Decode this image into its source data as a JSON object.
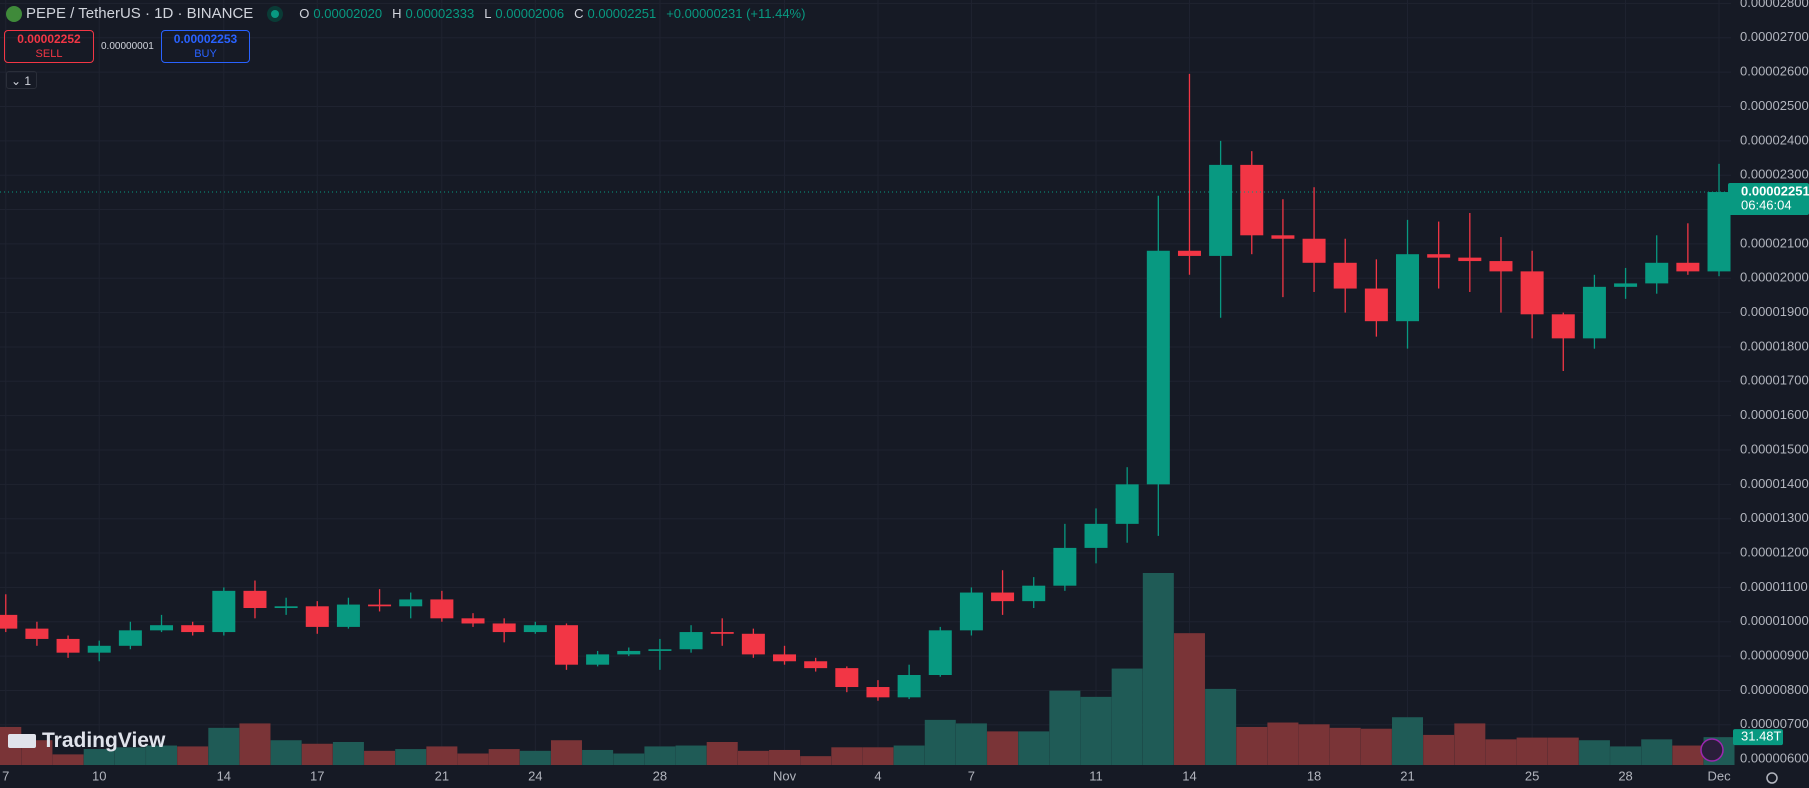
{
  "header": {
    "symbol": "PEPE / TetherUS · 1D · BINANCE",
    "o": "O",
    "open": "0.00002020",
    "h": "H",
    "high": "0.00002333",
    "l": "L",
    "low": "0.00002006",
    "c": "C",
    "close": "0.00002251",
    "change": "+0.00000231 (+11.44%)"
  },
  "trade": {
    "sell_price": "0.00002252",
    "sell": "SELL",
    "spread": "0.00000001",
    "buy_price": "0.00002253",
    "buy": "BUY"
  },
  "indicators": "1",
  "logo": "TradingView",
  "chart_data": {
    "type": "candlestick",
    "categories": [
      "7",
      null,
      null,
      "10",
      null,
      null,
      null,
      "14",
      null,
      null,
      "17",
      null,
      null,
      null,
      "21",
      null,
      null,
      "24",
      null,
      null,
      null,
      "28",
      null,
      null,
      null,
      "Nov",
      null,
      null,
      "4",
      null,
      null,
      "7",
      null,
      null,
      null,
      "11",
      null,
      null,
      "14",
      null,
      null,
      null,
      "18",
      null,
      null,
      "21",
      null,
      null,
      null,
      "25",
      null,
      null,
      "28",
      null,
      null,
      "Dec"
    ],
    "open": [
      1.02e-05,
      9.8e-06,
      9.5e-06,
      9.1e-06,
      9.3e-06,
      9.75e-06,
      9.9e-06,
      9.7e-06,
      1.09e-05,
      1.04e-05,
      1.045e-05,
      9.85e-06,
      1.05e-05,
      1.045e-05,
      1.065e-05,
      1.01e-05,
      9.95e-06,
      9.7e-06,
      9.9e-06,
      8.75e-06,
      9.05e-06,
      9.15e-06,
      9.2e-06,
      9.7e-06,
      9.65e-06,
      9.05e-06,
      8.85e-06,
      8.65e-06,
      8.1e-06,
      7.8e-06,
      8.45e-06,
      9.75e-06,
      1.085e-05,
      1.06e-05,
      1.105e-05,
      1.215e-05,
      1.285e-05,
      1.4e-05,
      2.08e-05,
      2.065e-05,
      2.33e-05,
      2.125e-05,
      2.115e-05,
      2.045e-05,
      1.97e-05,
      1.875e-05,
      2.07e-05,
      2.06e-05,
      2.05e-05,
      2.02e-05,
      1.895e-05,
      1.825e-05,
      1.975e-05,
      1.985e-05,
      2.045e-05,
      2.02e-05
    ],
    "high": [
      1.08e-05,
      1e-05,
      9.6e-06,
      9.45e-06,
      1e-05,
      1.02e-05,
      1e-05,
      1.1e-05,
      1.12e-05,
      1.07e-05,
      1.06e-05,
      1.07e-05,
      1.095e-05,
      1.085e-05,
      1.09e-05,
      1.025e-05,
      1.01e-05,
      1e-05,
      9.95e-06,
      9.15e-06,
      9.25e-06,
      9.5e-06,
      9.9e-06,
      1.01e-05,
      9.8e-06,
      9.3e-06,
      8.95e-06,
      8.7e-06,
      8.3e-06,
      8.75e-06,
      9.85e-06,
      1.1e-05,
      1.15e-05,
      1.13e-05,
      1.285e-05,
      1.33e-05,
      1.45e-05,
      2.24e-05,
      2.595e-05,
      2.4e-05,
      2.37e-05,
      2.23e-05,
      2.265e-05,
      2.115e-05,
      2.055e-05,
      2.17e-05,
      2.165e-05,
      2.19e-05,
      2.12e-05,
      2.08e-05,
      1.9e-05,
      2.01e-05,
      2.03e-05,
      2.125e-05,
      2.16e-05,
      2.333e-05
    ],
    "low": [
      9.7e-06,
      9.3e-06,
      8.95e-06,
      8.85e-06,
      9.2e-06,
      9.7e-06,
      9.6e-06,
      9.6e-06,
      1.01e-05,
      1.02e-05,
      9.65e-06,
      9.8e-06,
      1.03e-05,
      1.01e-05,
      1e-05,
      9.85e-06,
      9.4e-06,
      9.65e-06,
      8.6e-06,
      8.7e-06,
      9e-06,
      8.6e-06,
      9.1e-06,
      9.3e-06,
      8.95e-06,
      8.75e-06,
      8.55e-06,
      7.95e-06,
      7.7e-06,
      7.75e-06,
      8.4e-06,
      9.6e-06,
      1.02e-05,
      1.04e-05,
      1.09e-05,
      1.17e-05,
      1.23e-05,
      1.25e-05,
      2.01e-05,
      1.885e-05,
      2.07e-05,
      1.945e-05,
      1.96e-05,
      1.9e-05,
      1.83e-05,
      1.795e-05,
      1.97e-05,
      1.96e-05,
      1.9e-05,
      1.825e-05,
      1.73e-05,
      1.795e-05,
      1.94e-05,
      1.955e-05,
      2.01e-05,
      2.006e-05
    ],
    "close": [
      9.8e-06,
      9.5e-06,
      9.1e-06,
      9.3e-06,
      9.75e-06,
      9.9e-06,
      9.7e-06,
      1.09e-05,
      1.04e-05,
      1.045e-05,
      9.85e-06,
      1.05e-05,
      1.045e-05,
      1.065e-05,
      1.01e-05,
      9.95e-06,
      9.7e-06,
      9.9e-06,
      8.75e-06,
      9.05e-06,
      9.15e-06,
      9.2e-06,
      9.7e-06,
      9.65e-06,
      9.05e-06,
      8.85e-06,
      8.65e-06,
      8.1e-06,
      7.8e-06,
      8.45e-06,
      9.75e-06,
      1.085e-05,
      1.06e-05,
      1.105e-05,
      1.215e-05,
      1.285e-05,
      1.4e-05,
      2.08e-05,
      2.065e-05,
      2.33e-05,
      2.125e-05,
      2.115e-05,
      2.045e-05,
      1.97e-05,
      1.875e-05,
      2.07e-05,
      2.06e-05,
      2.05e-05,
      2.02e-05,
      1.895e-05,
      1.825e-05,
      1.975e-05,
      1.985e-05,
      2.045e-05,
      2.02e-05,
      2.251e-05
    ],
    "volume": [
      43,
      28,
      12,
      18,
      20,
      22,
      21,
      42,
      47,
      28,
      24,
      26,
      16,
      18,
      21,
      13,
      18,
      16,
      28,
      17,
      13,
      21,
      22,
      26,
      16,
      17,
      10,
      20,
      20,
      22,
      51,
      47,
      38,
      38,
      84,
      77,
      109,
      217,
      149,
      86,
      43,
      48,
      46,
      42,
      41,
      54,
      34,
      47,
      29,
      31,
      31,
      28,
      21,
      29,
      22,
      31.48
    ],
    "volume_label": "31.48T",
    "last_price_label": "0.00002251",
    "countdown": "06:46:04",
    "ylim": [
      5.83e-06,
      2.81e-05
    ],
    "yticks": [
      {
        "value": 6e-06,
        "label": "0.00000600"
      },
      {
        "value": 7e-06,
        "label": "0.00000700"
      },
      {
        "value": 8e-06,
        "label": "0.00000800"
      },
      {
        "value": 9e-06,
        "label": "0.00000900"
      },
      {
        "value": 1e-05,
        "label": "0.00001000"
      },
      {
        "value": 1.1e-05,
        "label": "0.00001100"
      },
      {
        "value": 1.2e-05,
        "label": "0.00001200"
      },
      {
        "value": 1.3e-05,
        "label": "0.00001300"
      },
      {
        "value": 1.4e-05,
        "label": "0.00001400"
      },
      {
        "value": 1.5e-05,
        "label": "0.00001500"
      },
      {
        "value": 1.6e-05,
        "label": "0.00001600"
      },
      {
        "value": 1.7e-05,
        "label": "0.00001700"
      },
      {
        "value": 1.8e-05,
        "label": "0.00001800"
      },
      {
        "value": 1.9e-05,
        "label": "0.00001900"
      },
      {
        "value": 2e-05,
        "label": "0.00002000"
      },
      {
        "value": 2.1e-05,
        "label": "0.00002100"
      },
      {
        "value": 2.2e-05,
        "label": "0.00002200"
      },
      {
        "value": 2.3e-05,
        "label": "0.00002300"
      },
      {
        "value": 2.4e-05,
        "label": "0.00002400"
      },
      {
        "value": 2.5e-05,
        "label": "0.00002500"
      },
      {
        "value": 2.6e-05,
        "label": "0.00002600"
      },
      {
        "value": 2.7e-05,
        "label": "0.00002700"
      },
      {
        "value": 2.8e-05,
        "label": "0.00002800"
      }
    ],
    "grid": true,
    "up_color": "#089981",
    "down_color": "#f23645",
    "volume_up_color": "#1f5b56",
    "volume_down_color": "#7a3437"
  }
}
